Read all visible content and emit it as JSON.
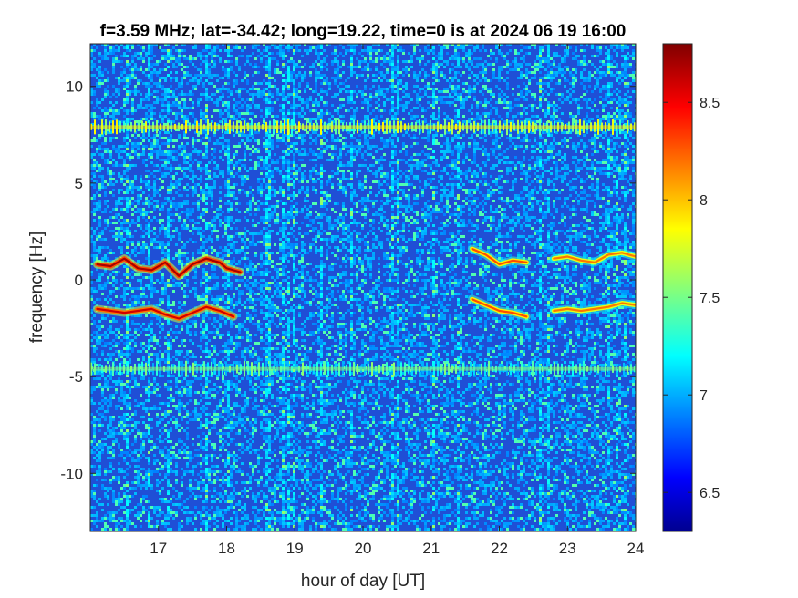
{
  "chart_data": {
    "type": "heatmap",
    "title": "f=3.59 MHz;  lat=-34.42; long=19.22, time=0 is at 2024 06 19 16:00",
    "xlabel": "hour of day [UT]",
    "ylabel": "frequency [Hz]",
    "xlim": [
      16,
      24
    ],
    "ylim": [
      -13,
      12.2
    ],
    "x_ticks": [
      17,
      18,
      19,
      20,
      21,
      22,
      23,
      24
    ],
    "x_tick_labels": [
      "17",
      "18",
      "19",
      "20",
      "21",
      "22",
      "23",
      "24"
    ],
    "y_ticks": [
      -10,
      -5,
      0,
      5,
      10
    ],
    "y_tick_labels": [
      "-10",
      "-5",
      "0",
      "5",
      "10"
    ],
    "colormap": "jet",
    "color_limits": [
      6.3,
      8.8
    ],
    "colorbar_ticks": [
      6.5,
      7,
      7.5,
      8,
      8.5
    ],
    "colorbar_tick_labels": [
      "6.5",
      "7",
      "7.5",
      "8",
      "8.5"
    ],
    "background_level": 6.9,
    "features": [
      {
        "kind": "horizontal-band",
        "frequency_hz": 7.9,
        "level": 7.9
      },
      {
        "kind": "horizontal-band",
        "frequency_hz": -4.6,
        "level": 7.6
      },
      {
        "kind": "trace",
        "level": 8.7,
        "points": [
          [
            16.1,
            0.8
          ],
          [
            16.3,
            0.7
          ],
          [
            16.5,
            1.1
          ],
          [
            16.7,
            0.6
          ],
          [
            16.9,
            0.5
          ],
          [
            17.1,
            0.9
          ],
          [
            17.3,
            0.2
          ],
          [
            17.5,
            0.8
          ],
          [
            17.7,
            1.1
          ],
          [
            17.9,
            0.9
          ],
          [
            18.0,
            0.6
          ],
          [
            18.2,
            0.4
          ]
        ]
      },
      {
        "kind": "trace",
        "level": 8.6,
        "points": [
          [
            16.1,
            -1.5
          ],
          [
            16.3,
            -1.6
          ],
          [
            16.5,
            -1.7
          ],
          [
            16.7,
            -1.6
          ],
          [
            16.9,
            -1.5
          ],
          [
            17.1,
            -1.8
          ],
          [
            17.3,
            -2.0
          ],
          [
            17.5,
            -1.7
          ],
          [
            17.7,
            -1.4
          ],
          [
            17.9,
            -1.6
          ],
          [
            18.1,
            -1.9
          ]
        ]
      },
      {
        "kind": "trace",
        "level": 8.3,
        "points": [
          [
            21.6,
            1.6
          ],
          [
            21.8,
            1.3
          ],
          [
            22.0,
            0.8
          ],
          [
            22.2,
            1.0
          ],
          [
            22.4,
            0.9
          ]
        ]
      },
      {
        "kind": "trace",
        "level": 8.3,
        "points": [
          [
            21.6,
            -1.0
          ],
          [
            21.8,
            -1.3
          ],
          [
            22.0,
            -1.6
          ],
          [
            22.2,
            -1.7
          ],
          [
            22.4,
            -1.9
          ]
        ]
      },
      {
        "kind": "trace",
        "level": 8.2,
        "points": [
          [
            22.8,
            1.1
          ],
          [
            23.0,
            1.2
          ],
          [
            23.2,
            1.0
          ],
          [
            23.4,
            0.9
          ],
          [
            23.6,
            1.3
          ],
          [
            23.8,
            1.4
          ],
          [
            24.0,
            1.2
          ]
        ]
      },
      {
        "kind": "trace",
        "level": 8.2,
        "points": [
          [
            22.8,
            -1.6
          ],
          [
            23.0,
            -1.5
          ],
          [
            23.2,
            -1.6
          ],
          [
            23.4,
            -1.5
          ],
          [
            23.6,
            -1.4
          ],
          [
            23.8,
            -1.2
          ],
          [
            24.0,
            -1.3
          ]
        ]
      }
    ]
  }
}
